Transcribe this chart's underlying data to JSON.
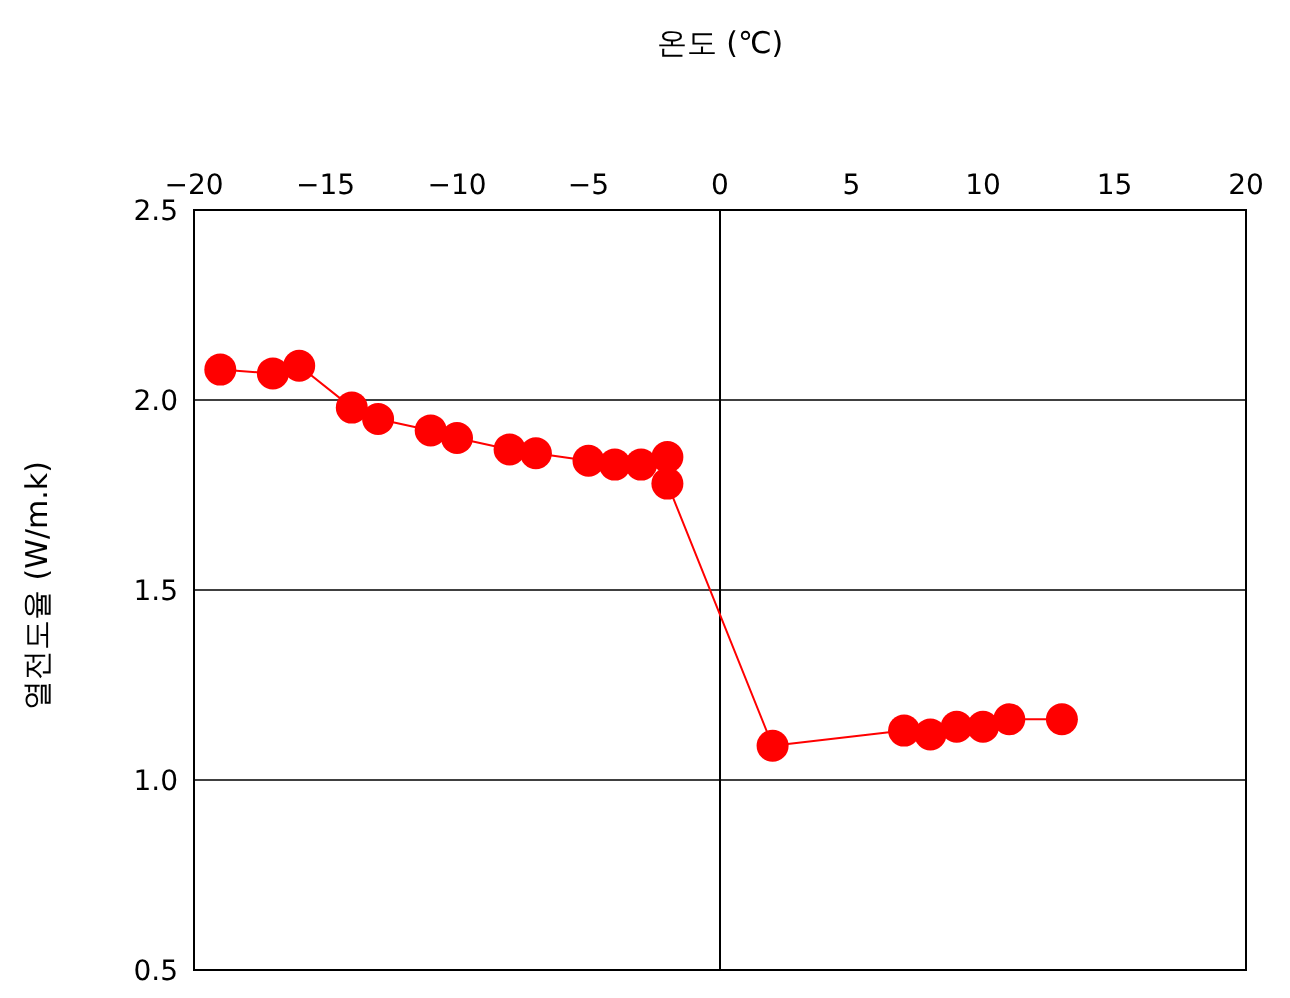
{
  "chart_data": {
    "type": "line",
    "xlabel": "온도 (℃)",
    "ylabel": "열전도율 (W/m.k)",
    "x": [
      -19,
      -17,
      -16,
      -14,
      -13,
      -11,
      -10,
      -8,
      -7,
      -5,
      -4,
      -3,
      -2,
      -2,
      2,
      7,
      8,
      9,
      10,
      11,
      13
    ],
    "series": [
      {
        "color": "#ff0000",
        "values": [
          2.08,
          2.07,
          2.09,
          1.98,
          1.95,
          1.92,
          1.9,
          1.87,
          1.86,
          1.84,
          1.83,
          1.83,
          1.85,
          1.78,
          1.09,
          1.13,
          1.12,
          1.14,
          1.14,
          1.16,
          1.16
        ]
      }
    ],
    "xlim": [
      -20,
      20
    ],
    "xticks": [
      {
        "value": -20,
        "label": "−20"
      },
      {
        "value": -15,
        "label": "−15"
      },
      {
        "value": -10,
        "label": "−10"
      },
      {
        "value": -5,
        "label": "−5"
      },
      0,
      5,
      10,
      15,
      20
    ],
    "ylim": [
      0.5,
      2.5
    ],
    "yticks": [
      0.5,
      {
        "value": 1,
        "label": "1.0"
      },
      1.5,
      {
        "value": 2,
        "label": "2.0"
      },
      2.5
    ],
    "grid": "y",
    "marker": "circle",
    "line_style": "solid",
    "legend": false,
    "ref_lines": [
      {
        "axis": "x",
        "value": 0,
        "color": "#000000"
      }
    ]
  }
}
